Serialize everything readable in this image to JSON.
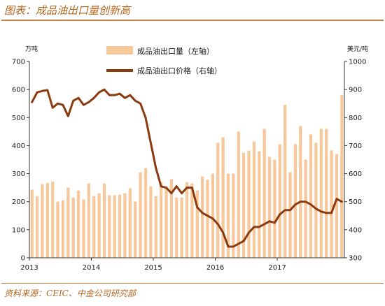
{
  "header": {
    "title": "图表：成品油出口量创新高"
  },
  "footer": {
    "source": "资料来源：CEIC、中金公司研究部"
  },
  "colors": {
    "bar": "#f7c89b",
    "line": "#8b3a0e",
    "rule": "#c9854a",
    "title": "#b5651d"
  },
  "chart_data": {
    "type": "bar+line",
    "left_axis": {
      "unit": "万吨",
      "ylim": [
        0,
        700
      ],
      "ticks": [
        "0",
        "100",
        "200",
        "300",
        "400",
        "500",
        "600",
        "700"
      ]
    },
    "right_axis": {
      "unit": "美元/吨",
      "ylim": [
        300,
        1000
      ],
      "ticks": [
        "300",
        "400",
        "500",
        "600",
        "700",
        "800",
        "900",
        "1000"
      ]
    },
    "x_ticks": [
      "2013",
      "2014",
      "2015",
      "2016",
      "2017"
    ],
    "x_start": "2013-01",
    "legend": {
      "position": "top-center"
    },
    "series": [
      {
        "name": "成品油出口量（左轴）",
        "type": "bar",
        "axis": "left",
        "values": [
          243,
          220,
          263,
          267,
          272,
          200,
          205,
          250,
          215,
          240,
          208,
          265,
          220,
          230,
          265,
          223,
          223,
          225,
          230,
          248,
          200,
          305,
          320,
          255,
          220,
          270,
          255,
          280,
          215,
          215,
          270,
          265,
          240,
          290,
          278,
          300,
          410,
          430,
          300,
          300,
          450,
          375,
          382,
          415,
          380,
          460,
          360,
          350,
          405,
          545,
          305,
          405,
          470,
          350,
          440,
          410,
          460,
          460,
          383,
          370,
          580
        ]
      },
      {
        "name": "成品油出口价格（右轴）",
        "type": "line",
        "axis": "right",
        "values": [
          855,
          890,
          895,
          898,
          835,
          850,
          845,
          805,
          860,
          870,
          845,
          855,
          870,
          890,
          900,
          880,
          880,
          885,
          870,
          880,
          860,
          850,
          800,
          710,
          620,
          555,
          550,
          530,
          555,
          530,
          550,
          550,
          480,
          460,
          450,
          440,
          420,
          390,
          340,
          340,
          350,
          360,
          390,
          410,
          410,
          420,
          430,
          425,
          455,
          470,
          470,
          490,
          500,
          500,
          490,
          475,
          465,
          460,
          460,
          510,
          500
        ]
      }
    ]
  }
}
